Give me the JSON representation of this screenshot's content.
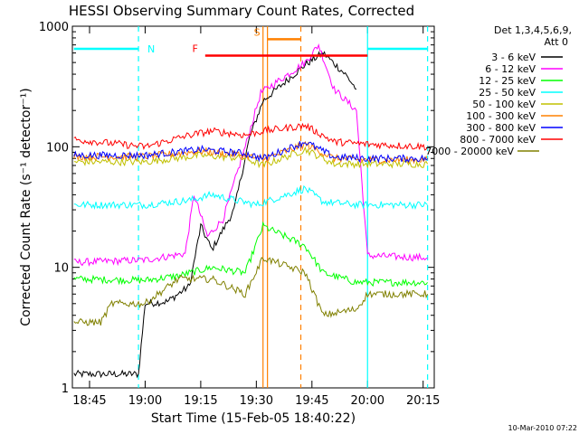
{
  "chart_data": {
    "type": "line",
    "title": "HESSI Observing Summary Count Rates, Corrected",
    "xlabel": "Start Time (15-Feb-05 18:40:22)",
    "ylabel": "Corrected Count Rate (s⁻¹ detector⁻¹)",
    "yscale": "log",
    "xlim": [
      "18:40:22",
      "20:18:00"
    ],
    "ylim": [
      1,
      1000
    ],
    "x_ticks": [
      {
        "t": 18.75,
        "label": "18:45"
      },
      {
        "t": 19.0,
        "label": "19:00"
      },
      {
        "t": 19.25,
        "label": "19:15"
      },
      {
        "t": 19.5,
        "label": "19:30"
      },
      {
        "t": 19.75,
        "label": "19:45"
      },
      {
        "t": 20.0,
        "label": "20:00"
      },
      {
        "t": 20.25,
        "label": "20:15"
      }
    ],
    "y_ticks": [
      {
        "v": 1,
        "label": "1"
      },
      {
        "v": 10,
        "label": "10"
      },
      {
        "v": 100,
        "label": "100"
      },
      {
        "v": 1000,
        "label": "1000"
      }
    ],
    "legend_header": [
      "Det 1,3,4,5,6,9,",
      "Att 0"
    ],
    "legend_position": "right",
    "series": [
      {
        "name": "3 - 6 keV",
        "color": "#000000",
        "points": [
          [
            18.68,
            1.3
          ],
          [
            18.97,
            1.3
          ],
          [
            19.0,
            5
          ],
          [
            19.1,
            5.2
          ],
          [
            19.2,
            7
          ],
          [
            19.25,
            22
          ],
          [
            19.3,
            14
          ],
          [
            19.4,
            30
          ],
          [
            19.47,
            120
          ],
          [
            19.53,
            240
          ],
          [
            19.72,
            480
          ],
          [
            19.8,
            600
          ],
          [
            19.9,
            400
          ],
          [
            19.95,
            300
          ]
        ]
      },
      {
        "name": "6 - 12 keV",
        "color": "#ff00ff",
        "points": [
          [
            18.68,
            11
          ],
          [
            19.0,
            11.5
          ],
          [
            19.18,
            13
          ],
          [
            19.22,
            40
          ],
          [
            19.28,
            18
          ],
          [
            19.35,
            25
          ],
          [
            19.45,
            100
          ],
          [
            19.52,
            280
          ],
          [
            19.72,
            500
          ],
          [
            19.78,
            700
          ],
          [
            19.85,
            300
          ],
          [
            19.95,
            200
          ],
          [
            20.0,
            12.5
          ],
          [
            20.27,
            12
          ]
        ]
      },
      {
        "name": "12 - 25 keV",
        "color": "#00ff00",
        "points": [
          [
            18.68,
            8
          ],
          [
            19.0,
            7.8
          ],
          [
            19.15,
            8.5
          ],
          [
            19.3,
            10
          ],
          [
            19.45,
            9
          ],
          [
            19.53,
            22
          ],
          [
            19.72,
            15
          ],
          [
            19.8,
            9
          ],
          [
            19.95,
            7.5
          ],
          [
            20.0,
            7.5
          ],
          [
            20.27,
            7.5
          ]
        ]
      },
      {
        "name": "25 - 50 keV",
        "color": "#00ffff",
        "points": [
          [
            18.68,
            33
          ],
          [
            19.0,
            33
          ],
          [
            19.2,
            36
          ],
          [
            19.3,
            40
          ],
          [
            19.5,
            33
          ],
          [
            19.72,
            45
          ],
          [
            19.8,
            35
          ],
          [
            19.95,
            33
          ],
          [
            20.0,
            33
          ],
          [
            20.27,
            33
          ]
        ]
      },
      {
        "name": "50 - 100 keV",
        "color": "#c0c000",
        "points": [
          [
            18.68,
            75
          ],
          [
            19.0,
            75
          ],
          [
            19.25,
            85
          ],
          [
            19.45,
            80
          ],
          [
            19.53,
            70
          ],
          [
            19.72,
            95
          ],
          [
            19.85,
            72
          ],
          [
            20.0,
            72
          ],
          [
            20.27,
            72
          ]
        ]
      },
      {
        "name": "100 - 300 keV",
        "color": "#ff8000",
        "points": [
          [
            18.68,
            83
          ],
          [
            19.0,
            83
          ],
          [
            19.25,
            92
          ],
          [
            19.45,
            85
          ],
          [
            19.53,
            78
          ],
          [
            19.72,
            105
          ],
          [
            19.85,
            80
          ],
          [
            20.0,
            78
          ],
          [
            20.27,
            78
          ]
        ]
      },
      {
        "name": "300 - 800 keV",
        "color": "#0000ff",
        "points": [
          [
            18.68,
            85
          ],
          [
            19.0,
            85
          ],
          [
            19.25,
            95
          ],
          [
            19.45,
            88
          ],
          [
            19.53,
            80
          ],
          [
            19.72,
            110
          ],
          [
            19.85,
            82
          ],
          [
            20.0,
            80
          ],
          [
            20.27,
            80
          ]
        ]
      },
      {
        "name": "800 - 7000 keV",
        "color": "#ff0000",
        "points": [
          [
            18.68,
            115
          ],
          [
            19.0,
            100
          ],
          [
            19.2,
            125
          ],
          [
            19.3,
            135
          ],
          [
            19.45,
            125
          ],
          [
            19.53,
            135
          ],
          [
            19.72,
            150
          ],
          [
            19.85,
            110
          ],
          [
            20.0,
            105
          ],
          [
            20.27,
            100
          ]
        ]
      },
      {
        "name": "7000 - 20000 keV",
        "color": "#808000",
        "points": [
          [
            18.68,
            3.5
          ],
          [
            18.8,
            3.5
          ],
          [
            18.85,
            5
          ],
          [
            19.0,
            5
          ],
          [
            19.15,
            8
          ],
          [
            19.3,
            8
          ],
          [
            19.45,
            6
          ],
          [
            19.53,
            12
          ],
          [
            19.72,
            9
          ],
          [
            19.8,
            4
          ],
          [
            19.95,
            4.5
          ],
          [
            20.0,
            6
          ],
          [
            20.27,
            6
          ]
        ]
      }
    ],
    "flags": [
      {
        "label": "N",
        "color": "#00ffff",
        "segments": [
          [
            18.68,
            18.97
          ],
          [
            20.0,
            20.27
          ]
        ],
        "y": 650
      },
      {
        "label": "S",
        "color": "#ff8000",
        "segments": [
          [
            19.55,
            19.7
          ]
        ],
        "y": 780
      },
      {
        "label": "F",
        "color": "#ff0000",
        "segments": [
          [
            19.27,
            20.0
          ]
        ],
        "y": 570
      }
    ],
    "vlines": [
      {
        "t": 18.97,
        "color": "#00ffff",
        "style": "dashed"
      },
      {
        "t": 20.0,
        "color": "#00ffff",
        "style": "solid"
      },
      {
        "t": 20.27,
        "color": "#00ffff",
        "style": "dashed"
      },
      {
        "t": 19.53,
        "color": "#ff8000",
        "style": "solid"
      },
      {
        "t": 19.55,
        "color": "#ff8000",
        "style": "solid"
      },
      {
        "t": 19.7,
        "color": "#ff8000",
        "style": "dashed"
      }
    ],
    "footer_date": "10-Mar-2010 07:22"
  }
}
